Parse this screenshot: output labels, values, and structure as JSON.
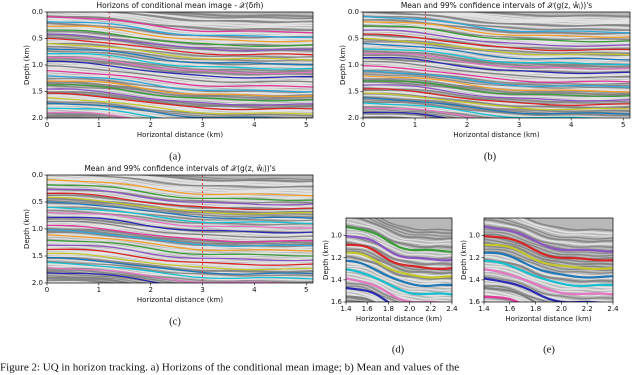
{
  "figure": {
    "panels": [
      {
        "title": "Horizons of conditional mean image - 𝒳(δm̄)",
        "xlabel": "Horizontal distance (km)",
        "ylabel": "Depth (km)",
        "xlim": [
          0,
          5.13
        ],
        "ylim": [
          0,
          2
        ],
        "y_inverted": true,
        "xticks": [
          0,
          1,
          2,
          3,
          4,
          5
        ],
        "yticks": [
          {
            "value": 0,
            "label": "0.0"
          },
          0.5,
          {
            "value": 1,
            "label": "1.0"
          },
          1.5,
          {
            "value": 2,
            "label": "2.0"
          }
        ],
        "label": "(a)"
      },
      {
        "title": "Mean and 99% confidence intervals of 𝒳(g(z, ŵⱼ))'s",
        "xlabel": "Horizontal distance (km)",
        "ylabel": "Depth (km)",
        "xlim": [
          0,
          5.13
        ],
        "ylim": [
          0,
          2
        ],
        "y_inverted": true,
        "xticks": [
          0,
          1,
          2,
          3,
          4,
          5
        ],
        "yticks": [
          {
            "value": 0,
            "label": "0.0"
          },
          0.5,
          {
            "value": 1,
            "label": "1.0"
          },
          1.5,
          {
            "value": 2,
            "label": "2.0"
          }
        ],
        "label": "(b)"
      },
      {
        "title": "Mean and 99% confidence intervals of 𝒳(g(z, ŵⱼ))'s",
        "xlabel": "Horizontal distance (km)",
        "ylabel": "Depth (km)",
        "xlim": [
          0,
          5.13
        ],
        "ylim": [
          0,
          2
        ],
        "y_inverted": true,
        "xticks": [
          0,
          1,
          2,
          3,
          4,
          5
        ],
        "yticks": [
          {
            "value": 0,
            "label": "0.0"
          },
          0.5,
          {
            "value": 1,
            "label": "1.0"
          },
          1.5,
          {
            "value": 2,
            "label": "2.0"
          }
        ],
        "label": "(c)"
      },
      {
        "xlabel": "Horizontal distance (km)",
        "ylabel": "Depth (km)",
        "xlim": [
          1.4,
          2.4
        ],
        "ylim": [
          0.84,
          1.6
        ],
        "y_inverted": true,
        "xticks": [
          1.4,
          1.6,
          1.8,
          {
            "value": 2,
            "label": "2.0"
          },
          2.2,
          2.4
        ],
        "yticks": [
          {
            "value": 1,
            "label": "1.0"
          },
          1.2,
          1.4,
          1.6
        ],
        "label": "(d)"
      },
      {
        "xlabel": "Horizontal distance (km)",
        "ylabel": "Depth (km)",
        "xlim": [
          1.4,
          2.4
        ],
        "ylim": [
          0.84,
          1.6
        ],
        "y_inverted": true,
        "xticks": [
          1.4,
          1.6,
          1.8,
          {
            "value": 2,
            "label": "2.0"
          },
          2.2,
          2.4
        ],
        "yticks": [
          {
            "value": 1,
            "label": "1.0"
          },
          1.2,
          1.4,
          1.6
        ],
        "label": "(e)"
      }
    ],
    "caption": "Figure 2: UQ in horizon tracking. a) Horizons of the conditional mean image; b) Mean and values of the"
  }
}
